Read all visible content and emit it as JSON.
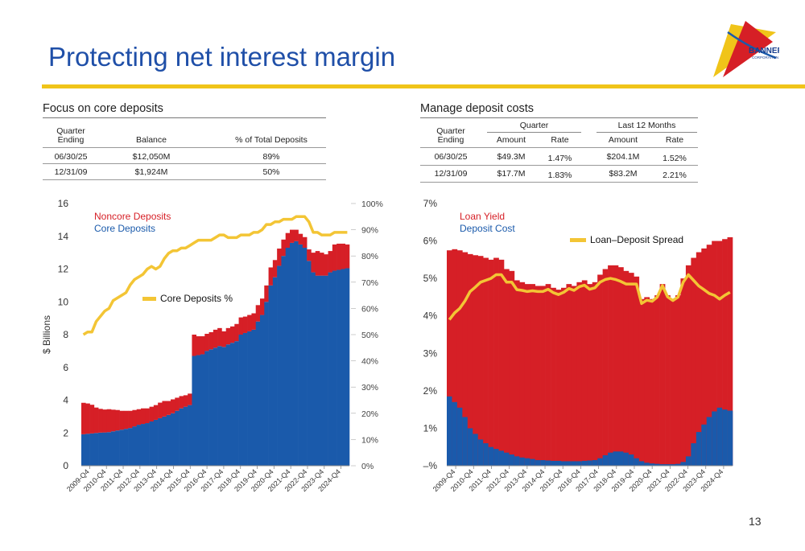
{
  "title": "Protecting net interest margin",
  "logo": {
    "name": "BANNER",
    "sub": "CORPORATION"
  },
  "page_number": "13",
  "left_table": {
    "heading": "Focus on core deposits",
    "col1_line1": "Quarter",
    "col1_line2": "Ending",
    "col2": "Balance",
    "col3": "% of Total Deposits",
    "rows": [
      {
        "quarter": "06/30/25",
        "balance": "$12,050M",
        "pct": "89%"
      },
      {
        "quarter": "12/31/09",
        "balance": "$1,924M",
        "pct": "50%"
      }
    ]
  },
  "right_table": {
    "heading": "Manage deposit costs",
    "col1_line1": "Quarter",
    "col1_line2": "Ending",
    "group1": "Quarter",
    "group2": "Last 12 Months",
    "amount": "Amount",
    "rate": "Rate",
    "rows": [
      {
        "quarter": "06/30/25",
        "q_amount": "$49.3M",
        "q_rate": "1.47%",
        "l_amount": "$204.1M",
        "l_rate": "1.52%"
      },
      {
        "quarter": "12/31/09",
        "q_amount": "$17.7M",
        "q_rate": "1.83%",
        "l_amount": "$83.2M",
        "l_rate": "2.21%"
      }
    ]
  },
  "chart_data": [
    {
      "type": "bar",
      "stacked": true,
      "ylabel": "$ Billions",
      "ylim": [
        0,
        16
      ],
      "y_ticks": [
        "0",
        "2",
        "4",
        "6",
        "8",
        "10",
        "12",
        "14",
        "16"
      ],
      "y2lim": [
        0,
        100
      ],
      "y2_ticks": [
        "0%",
        "10%",
        "20%",
        "30%",
        "40%",
        "50%",
        "60%",
        "70%",
        "80%",
        "90%",
        "100%"
      ],
      "x_tick_labels": [
        "2009-Q4",
        "2010-Q4",
        "2011-Q4",
        "2012-Q4",
        "2013-Q4",
        "2014-Q4",
        "2015-Q4",
        "2016-Q4",
        "2017-Q4",
        "2018-Q4",
        "2019-Q4",
        "2020-Q4",
        "2021-Q4",
        "2022-Q4",
        "2023-Q4",
        "2024-Q4"
      ],
      "legend": "top-left",
      "colors": {
        "core": "#1a5aab",
        "noncore": "#d61f26",
        "line": "#f3c535"
      },
      "series": [
        {
          "name": "Core Deposits",
          "values": [
            1.92,
            1.95,
            1.97,
            2.0,
            2.02,
            2.03,
            2.05,
            2.1,
            2.15,
            2.2,
            2.25,
            2.3,
            2.4,
            2.5,
            2.55,
            2.6,
            2.7,
            2.8,
            2.9,
            3.0,
            3.1,
            3.2,
            3.35,
            3.5,
            3.6,
            3.7,
            6.7,
            6.75,
            6.8,
            7.0,
            7.1,
            7.2,
            7.3,
            7.25,
            7.4,
            7.5,
            7.6,
            8.0,
            8.1,
            8.2,
            8.3,
            8.8,
            9.2,
            10.0,
            11.0,
            11.5,
            12.2,
            12.8,
            13.3,
            13.6,
            13.7,
            13.5,
            13.3,
            12.5,
            11.8,
            11.6,
            11.6,
            11.6,
            11.8,
            11.9,
            11.95,
            12.0,
            12.05
          ]
        },
        {
          "name": "Noncore Deposits",
          "values": [
            1.92,
            1.85,
            1.75,
            1.55,
            1.45,
            1.4,
            1.4,
            1.32,
            1.25,
            1.15,
            1.1,
            1.05,
            1.0,
            0.95,
            0.95,
            0.9,
            0.9,
            0.9,
            0.95,
            0.95,
            0.85,
            0.85,
            0.8,
            0.75,
            0.7,
            0.7,
            1.3,
            1.15,
            1.1,
            1.05,
            1.05,
            1.1,
            1.1,
            0.95,
            1.0,
            1.0,
            1.05,
            1.05,
            1.0,
            1.0,
            1.0,
            1.0,
            1.0,
            1.0,
            1.1,
            1.05,
            1.05,
            1.0,
            0.9,
            0.8,
            0.7,
            0.65,
            0.65,
            0.7,
            1.2,
            1.5,
            1.4,
            1.3,
            1.3,
            1.6,
            1.6,
            1.55,
            1.45
          ]
        },
        {
          "name": "Core Deposits %",
          "axis": "right",
          "values": [
            50,
            51,
            51,
            55,
            57,
            59,
            60,
            63,
            64,
            65,
            66,
            69,
            71,
            72,
            73,
            75,
            76,
            75,
            76,
            79,
            81,
            82,
            82,
            83,
            83,
            84,
            85,
            86,
            86,
            86,
            86,
            87,
            88,
            88,
            87,
            87,
            87,
            88,
            88,
            88,
            89,
            89,
            90,
            92,
            92,
            93,
            93,
            94,
            94,
            94,
            95,
            95,
            95,
            93,
            89,
            89,
            88,
            88,
            88,
            89,
            89,
            89,
            89
          ]
        }
      ]
    },
    {
      "type": "bar",
      "overlay": true,
      "ylim": [
        0,
        7
      ],
      "y_ticks": [
        "–%",
        "1%",
        "2%",
        "3%",
        "4%",
        "5%",
        "6%",
        "7%"
      ],
      "x_tick_labels": [
        "2009-Q4",
        "2010-Q4",
        "2011-Q4",
        "2012-Q4",
        "2013-Q4",
        "2014-Q4",
        "2015-Q4",
        "2016-Q4",
        "2017-Q4",
        "2018-Q4",
        "2019-Q4",
        "2020-Q4",
        "2021-Q4",
        "2022-Q4",
        "2023-Q4",
        "2024-Q4"
      ],
      "legend": "top-left",
      "colors": {
        "yield": "#d61f26",
        "cost": "#1a5aab",
        "line": "#f3c535"
      },
      "series": [
        {
          "name": "Loan Yield",
          "values": [
            5.75,
            5.78,
            5.75,
            5.7,
            5.65,
            5.62,
            5.6,
            5.55,
            5.5,
            5.55,
            5.5,
            5.25,
            5.2,
            4.95,
            4.9,
            4.85,
            4.85,
            4.8,
            4.8,
            4.85,
            4.75,
            4.7,
            4.75,
            4.85,
            4.8,
            4.9,
            4.95,
            4.85,
            4.9,
            5.1,
            5.25,
            5.35,
            5.35,
            5.3,
            5.2,
            5.15,
            5.05,
            4.45,
            4.5,
            4.45,
            4.55,
            4.85,
            4.55,
            4.45,
            4.55,
            5.0,
            5.35,
            5.55,
            5.7,
            5.8,
            5.9,
            6.0,
            6.0,
            6.05,
            6.1
          ]
        },
        {
          "name": "Deposit Cost",
          "values": [
            1.85,
            1.7,
            1.55,
            1.3,
            1.0,
            0.85,
            0.7,
            0.6,
            0.5,
            0.45,
            0.4,
            0.35,
            0.3,
            0.25,
            0.22,
            0.2,
            0.18,
            0.15,
            0.15,
            0.14,
            0.13,
            0.13,
            0.12,
            0.12,
            0.12,
            0.12,
            0.13,
            0.14,
            0.15,
            0.2,
            0.28,
            0.35,
            0.38,
            0.38,
            0.35,
            0.3,
            0.2,
            0.12,
            0.08,
            0.06,
            0.05,
            0.04,
            0.04,
            0.04,
            0.05,
            0.1,
            0.25,
            0.6,
            0.9,
            1.1,
            1.3,
            1.45,
            1.55,
            1.5,
            1.47
          ]
        },
        {
          "name": "Loan–Deposit Spread",
          "values": [
            3.9,
            4.08,
            4.2,
            4.4,
            4.65,
            4.77,
            4.9,
            4.95,
            5.0,
            5.1,
            5.1,
            4.9,
            4.9,
            4.7,
            4.68,
            4.65,
            4.67,
            4.65,
            4.65,
            4.71,
            4.62,
            4.57,
            4.63,
            4.73,
            4.68,
            4.78,
            4.82,
            4.71,
            4.75,
            4.9,
            4.97,
            5.0,
            4.97,
            4.92,
            4.85,
            4.85,
            4.85,
            4.33,
            4.42,
            4.39,
            4.5,
            4.81,
            4.51,
            4.41,
            4.5,
            4.9,
            5.1,
            4.95,
            4.8,
            4.7,
            4.6,
            4.55,
            4.45,
            4.55,
            4.63
          ]
        }
      ]
    }
  ]
}
